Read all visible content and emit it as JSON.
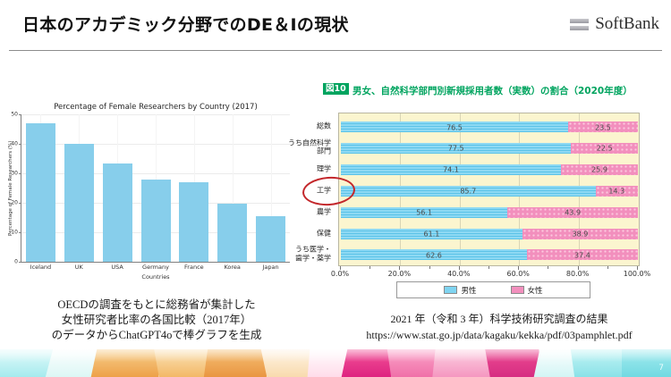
{
  "header": {
    "title": "日本のアカデミック分野でのDE＆Iの現状",
    "logo_text": "SoftBank"
  },
  "left_figure": {
    "caption_lines": [
      "OECDの調査をもとに総務省が集計した",
      "女性研究者比率の各国比較（2017年）",
      "のデータからChatGPT4oで棒グラフを生成"
    ]
  },
  "right_figure": {
    "badge": "図10",
    "title": "男女、自然科学部門別新規採用者数（実数）の割合（2020年度）",
    "caption_lines": [
      "2021 年（令和 3 年）科学技術研究調査の結果",
      "https://www.stat.go.jp/data/kagaku/kekka/pdf/03pamphlet.pdf"
    ]
  },
  "page_number": "7",
  "theme": {
    "accent_green": "#00a45f",
    "male_blue": "#7fd4f1",
    "female_pink": "#f28fbd",
    "skyblue_bar": "#87ceeb",
    "plot_background": "#fbf5cf",
    "emphasis_red": "#c3272b"
  },
  "chart_data": [
    {
      "type": "bar",
      "title": "Percentage of Female Researchers by Country (2017)",
      "categories": [
        "Iceland",
        "UK",
        "USA",
        "Germany",
        "France",
        "Korea",
        "Japan"
      ],
      "values": [
        47,
        40,
        33.4,
        28,
        27,
        19.7,
        15.5
      ],
      "xlabel": "Countries",
      "ylabel": "Percentage of Female Researchers (%)",
      "ylim": [
        0,
        50
      ],
      "yticks": [
        0,
        10,
        20,
        30,
        40,
        50
      ],
      "bar_color": "#87ceeb",
      "grid": true,
      "legend_position": "none"
    },
    {
      "type": "bar",
      "orientation": "horizontal",
      "stacked": true,
      "figure_label": "図10",
      "title": "男女、自然科学部門別新規採用者数（実数）の割合（2020年度）",
      "categories": [
        "総数",
        "うち自然科学部門",
        "理学",
        "工学",
        "農学",
        "保健",
        "うち医学・歯学・薬学"
      ],
      "categories_display": [
        "総数",
        "うち自然科学\n部門",
        "理学",
        "工学",
        "農学",
        "保健",
        "うち医学・\n歯学・薬学"
      ],
      "series": [
        {
          "name": "男性",
          "color": "#7fd4f1",
          "values": [
            76.5,
            77.5,
            74.1,
            85.7,
            56.1,
            61.1,
            62.6
          ]
        },
        {
          "name": "女性",
          "color": "#f28fbd",
          "values": [
            23.5,
            22.5,
            25.9,
            14.3,
            43.9,
            38.9,
            37.4
          ]
        }
      ],
      "xlim": [
        0,
        100
      ],
      "xticks": [
        "0.0%",
        "20.0%",
        "40.0%",
        "60.0%",
        "80.0%",
        "100.0%"
      ],
      "grid": true,
      "legend_position": "bottom",
      "background": "#fbf5cf",
      "annotation": "工学の行が赤い楕円で強調されている"
    }
  ]
}
